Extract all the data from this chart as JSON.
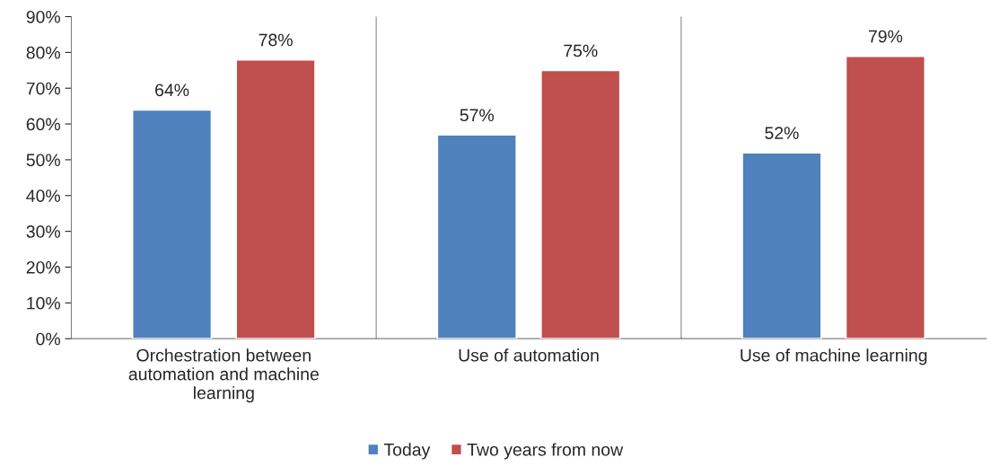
{
  "chart_data": {
    "type": "bar",
    "categories": [
      "Orchestration between automation and machine learning",
      "Use of automation",
      "Use of machine learning"
    ],
    "series": [
      {
        "name": "Today",
        "color": "#4f81bd",
        "values": [
          64,
          57,
          52
        ],
        "value_labels": [
          "64%",
          "57%",
          "52%"
        ]
      },
      {
        "name": "Two years from now",
        "color": "#c0504d",
        "values": [
          78,
          75,
          79
        ],
        "value_labels": [
          "78%",
          "75%",
          "79%"
        ]
      }
    ],
    "ylim": [
      0,
      90
    ],
    "yticks": [
      {
        "value": 0,
        "label": "0%"
      },
      {
        "value": 10,
        "label": "10%"
      },
      {
        "value": 20,
        "label": "20%"
      },
      {
        "value": 30,
        "label": "30%"
      },
      {
        "value": 40,
        "label": "40%"
      },
      {
        "value": 50,
        "label": "50%"
      },
      {
        "value": 60,
        "label": "60%"
      },
      {
        "value": 70,
        "label": "70%"
      },
      {
        "value": 80,
        "label": "80%"
      },
      {
        "value": 90,
        "label": "90%"
      }
    ],
    "grid": "x",
    "legend": "bottom"
  }
}
